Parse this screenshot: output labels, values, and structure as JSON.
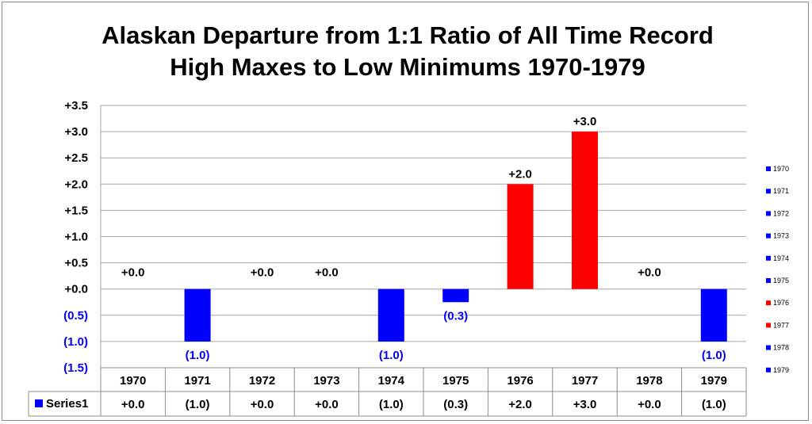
{
  "chart_data": {
    "type": "bar",
    "title_lines": [
      "Alaskan Departure from 1:1 Ratio of All Time Record",
      "High Maxes to Low Minimums 1970-1979"
    ],
    "categories": [
      "1970",
      "1971",
      "1972",
      "1973",
      "1974",
      "1975",
      "1976",
      "1977",
      "1978",
      "1979"
    ],
    "series": [
      {
        "name": "Series1",
        "values": [
          0.0,
          -1.0,
          0.0,
          0.0,
          -1.0,
          -0.25,
          2.0,
          3.0,
          0.0,
          -1.0
        ],
        "labels": [
          "+0.0",
          "(1.0)",
          "+0.0",
          "+0.0",
          "(1.0)",
          "(0.3)",
          "+2.0",
          "+3.0",
          "+0.0",
          "(1.0)"
        ]
      }
    ],
    "ylim": [
      -1.5,
      3.5
    ],
    "yticks": [
      3.5,
      3.0,
      2.5,
      2.0,
      1.5,
      1.0,
      0.5,
      0.0,
      -0.5,
      -1.0,
      -1.5
    ],
    "ytick_labels": [
      "+3.5",
      "+3.0",
      "+2.5",
      "+2.0",
      "+1.5",
      "+1.0",
      "+0.5",
      "+0.0",
      "(0.5)",
      "(1.0)",
      "(1.5)"
    ],
    "grid": true,
    "legend_position": "right",
    "data_table": true,
    "colors": {
      "negative": "#0000ff",
      "positive": "#ff0000",
      "neutral": "#0000ff",
      "grid": "#a6a6a6"
    }
  }
}
